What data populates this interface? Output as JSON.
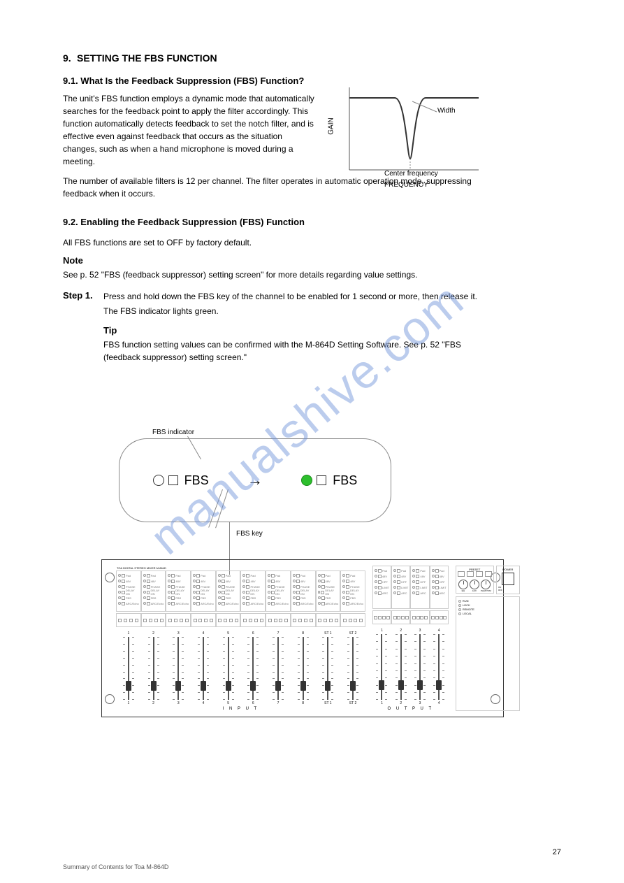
{
  "page": {
    "number": "27"
  },
  "footer": "Summary of Contents for Toa M-864D",
  "section": {
    "num": "9.",
    "title": "SETTING THE FBS FUNCTION"
  },
  "notch": {
    "title": "9.1. What Is the Feedback Suppression (FBS) Function?",
    "body1": "The unit's FBS function employs a dynamic mode that automatically searches for the feedback point to apply the filter accordingly. This function automatically detects feedback to set the notch filter, and is effective even against feedback that occurs as the situation changes, such as when a hand microphone is moved during a meeting.",
    "body2": "The number of available filters is 12 per channel. The filter operates in automatic operation mode, suppressing feedback when it occurs.",
    "ylabel": "GAIN",
    "xlabel": "FREQUENCY",
    "width_lbl": "Width",
    "fc_lbl": "Center frequency",
    "curve_color": "#777777"
  },
  "enable": {
    "title": "9.2. Enabling the Feedback Suppression (FBS) Function",
    "intro": "All FBS functions are set to OFF by factory default.",
    "note_lbl": "Note",
    "note_body": "See p. 52 \"FBS (feedback suppressor) setting screen\" for more details regarding value settings.",
    "step1_lbl": "Step 1.",
    "step1_text": "Press and hold down the FBS key of the channel to be enabled for 1 second or more, then release it.",
    "step1_result": "The FBS indicator lights green.",
    "tip_lbl": "Tip",
    "tip_body": "FBS function setting values can be confirmed with the M-864D Setting Software. See p. 52 \"FBS (feedback suppressor) setting screen.\""
  },
  "popup": {
    "fbs_label": "FBS",
    "indicator_lbl": "FBS indicator",
    "key_lbl": "FBS key"
  },
  "mixer": {
    "brand": "TOA",
    "model_line": "DIGITAL STEREO MIXER M-864D",
    "input_lbl": "I N P U T",
    "output_lbl": "O U T P U T",
    "preset_lbl": "PRESET",
    "power_lbl": "POWER",
    "on_lbl": "ON",
    "off_lbl": "OFF",
    "input_channels": [
      "1",
      "2",
      "3",
      "4",
      "5",
      "6",
      "7",
      "8",
      "ST 1",
      "ST 2"
    ],
    "output_channels": [
      "1",
      "2",
      "3",
      "4"
    ],
    "preset_knobs": [
      "EQ",
      "AUX",
      "PHANTOM"
    ],
    "status_lights": [
      "RUN",
      "LOCK",
      "REMOTE",
      "LOCAL"
    ],
    "channel_mini_labels": [
      "Pad",
      "48V",
      "PHASE",
      "DELAY ON",
      "FBS",
      "ARC/Echo"
    ],
    "output_mini_labels": [
      "Pad",
      "48V",
      "HPF",
      "LIMIT",
      "ARC"
    ],
    "assign_label": "ASSIGN",
    "fader_scale": [
      "10",
      "5",
      "0",
      "5",
      "10",
      "20",
      "30",
      "40",
      "50",
      "∞"
    ]
  },
  "watermark": "manualshive.com"
}
